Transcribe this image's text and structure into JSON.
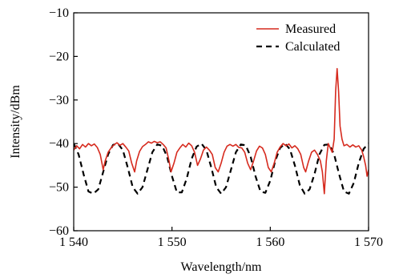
{
  "chart_data": {
    "type": "line",
    "xlabel": "Wavelength/nm",
    "ylabel": "Intensity/dBm",
    "xlim": [
      1540,
      1570
    ],
    "ylim": [
      -60,
      -10
    ],
    "x_ticks": [
      1540,
      1550,
      1560,
      1570
    ],
    "x_tick_labels": [
      "1 540",
      "1 550",
      "1 560",
      "1 570"
    ],
    "y_ticks": [
      -60,
      -50,
      -40,
      -30,
      -20,
      -10
    ],
    "y_tick_labels": [
      "−60",
      "−50",
      "−40",
      "−30",
      "−20",
      "−10"
    ],
    "grid": false,
    "legend_position": "top-right",
    "series": [
      {
        "name": "Measured",
        "color": "#d62a1e",
        "style": "solid",
        "points": [
          [
            1540.0,
            -41.5
          ],
          [
            1540.3,
            -40.5
          ],
          [
            1540.6,
            -41.2
          ],
          [
            1540.9,
            -40.2
          ],
          [
            1541.2,
            -40.8
          ],
          [
            1541.5,
            -40.0
          ],
          [
            1541.8,
            -40.5
          ],
          [
            1542.1,
            -40.1
          ],
          [
            1542.4,
            -40.9
          ],
          [
            1542.7,
            -42.5
          ],
          [
            1543.0,
            -46.0
          ],
          [
            1543.2,
            -44.0
          ],
          [
            1543.5,
            -42.0
          ],
          [
            1543.8,
            -41.0
          ],
          [
            1544.1,
            -40.3
          ],
          [
            1544.4,
            -39.8
          ],
          [
            1544.7,
            -40.4
          ],
          [
            1545.0,
            -40.0
          ],
          [
            1545.3,
            -40.8
          ],
          [
            1545.6,
            -41.7
          ],
          [
            1545.9,
            -44.5
          ],
          [
            1546.2,
            -46.5
          ],
          [
            1546.4,
            -44.0
          ],
          [
            1546.7,
            -41.8
          ],
          [
            1547.0,
            -40.7
          ],
          [
            1547.3,
            -40.2
          ],
          [
            1547.6,
            -39.6
          ],
          [
            1547.9,
            -39.9
          ],
          [
            1548.2,
            -39.5
          ],
          [
            1548.5,
            -39.8
          ],
          [
            1548.8,
            -39.6
          ],
          [
            1549.1,
            -40.2
          ],
          [
            1549.4,
            -41.0
          ],
          [
            1549.7,
            -44.0
          ],
          [
            1549.9,
            -46.5
          ],
          [
            1550.2,
            -44.5
          ],
          [
            1550.5,
            -42.0
          ],
          [
            1550.8,
            -41.0
          ],
          [
            1551.1,
            -40.2
          ],
          [
            1551.4,
            -40.8
          ],
          [
            1551.7,
            -39.9
          ],
          [
            1552.0,
            -40.5
          ],
          [
            1552.3,
            -42.0
          ],
          [
            1552.6,
            -45.0
          ],
          [
            1552.9,
            -43.5
          ],
          [
            1553.2,
            -41.5
          ],
          [
            1553.5,
            -40.8
          ],
          [
            1553.8,
            -41.5
          ],
          [
            1554.1,
            -42.5
          ],
          [
            1554.4,
            -45.5
          ],
          [
            1554.7,
            -46.5
          ],
          [
            1555.0,
            -44.5
          ],
          [
            1555.3,
            -42.0
          ],
          [
            1555.6,
            -40.6
          ],
          [
            1555.9,
            -40.2
          ],
          [
            1556.2,
            -40.6
          ],
          [
            1556.5,
            -40.2
          ],
          [
            1556.8,
            -40.9
          ],
          [
            1557.1,
            -41.0
          ],
          [
            1557.4,
            -42.0
          ],
          [
            1557.7,
            -44.5
          ],
          [
            1558.0,
            -46.0
          ],
          [
            1558.3,
            -44.0
          ],
          [
            1558.6,
            -41.7
          ],
          [
            1558.9,
            -40.6
          ],
          [
            1559.2,
            -41.0
          ],
          [
            1559.5,
            -42.5
          ],
          [
            1559.8,
            -45.5
          ],
          [
            1560.1,
            -46.5
          ],
          [
            1560.4,
            -44.5
          ],
          [
            1560.7,
            -42.0
          ],
          [
            1561.0,
            -40.8
          ],
          [
            1561.3,
            -40.0
          ],
          [
            1561.6,
            -40.5
          ],
          [
            1561.9,
            -40.1
          ],
          [
            1562.2,
            -41.0
          ],
          [
            1562.5,
            -40.5
          ],
          [
            1562.8,
            -41.2
          ],
          [
            1563.1,
            -42.5
          ],
          [
            1563.4,
            -45.5
          ],
          [
            1563.6,
            -46.5
          ],
          [
            1563.9,
            -44.0
          ],
          [
            1564.2,
            -42.0
          ],
          [
            1564.5,
            -41.5
          ],
          [
            1564.8,
            -42.5
          ],
          [
            1565.1,
            -44.0
          ],
          [
            1565.3,
            -46.5
          ],
          [
            1565.5,
            -51.5
          ],
          [
            1565.7,
            -44.0
          ],
          [
            1565.9,
            -40.0
          ],
          [
            1566.1,
            -41.0
          ],
          [
            1566.3,
            -42.0
          ],
          [
            1566.5,
            -39.0
          ],
          [
            1566.65,
            -28.0
          ],
          [
            1566.8,
            -22.8
          ],
          [
            1566.95,
            -28.0
          ],
          [
            1567.1,
            -36.0
          ],
          [
            1567.3,
            -39.0
          ],
          [
            1567.5,
            -40.5
          ],
          [
            1567.8,
            -40.2
          ],
          [
            1568.1,
            -40.8
          ],
          [
            1568.4,
            -40.3
          ],
          [
            1568.7,
            -40.8
          ],
          [
            1569.0,
            -40.5
          ],
          [
            1569.3,
            -41.5
          ],
          [
            1569.5,
            -43.0
          ],
          [
            1569.7,
            -45.0
          ],
          [
            1569.85,
            -47.5
          ],
          [
            1570.0,
            -46.0
          ]
        ]
      },
      {
        "name": "Calculated",
        "color": "#000000",
        "style": "dashed",
        "points": [
          [
            1540.0,
            -40.0
          ],
          [
            1540.5,
            -42.5
          ],
          [
            1541.0,
            -47.0
          ],
          [
            1541.5,
            -51.0
          ],
          [
            1542.0,
            -51.5
          ],
          [
            1542.5,
            -50.5
          ],
          [
            1543.0,
            -46.5
          ],
          [
            1543.5,
            -42.5
          ],
          [
            1544.0,
            -40.3
          ],
          [
            1544.5,
            -40.0
          ],
          [
            1545.0,
            -41.5
          ],
          [
            1545.5,
            -45.5
          ],
          [
            1546.0,
            -50.0
          ],
          [
            1546.5,
            -51.5
          ],
          [
            1547.0,
            -50.0
          ],
          [
            1547.5,
            -46.0
          ],
          [
            1548.0,
            -42.0
          ],
          [
            1548.5,
            -40.2
          ],
          [
            1549.0,
            -40.5
          ],
          [
            1549.5,
            -43.0
          ],
          [
            1550.0,
            -47.5
          ],
          [
            1550.5,
            -51.2
          ],
          [
            1551.0,
            -51.2
          ],
          [
            1551.5,
            -48.0
          ],
          [
            1552.0,
            -43.5
          ],
          [
            1552.5,
            -40.7
          ],
          [
            1553.0,
            -40.0
          ],
          [
            1553.5,
            -41.5
          ],
          [
            1554.0,
            -45.5
          ],
          [
            1554.5,
            -50.0
          ],
          [
            1555.0,
            -51.5
          ],
          [
            1555.5,
            -50.0
          ],
          [
            1556.0,
            -46.0
          ],
          [
            1556.5,
            -42.0
          ],
          [
            1557.0,
            -40.2
          ],
          [
            1557.5,
            -40.4
          ],
          [
            1558.0,
            -43.0
          ],
          [
            1558.5,
            -47.5
          ],
          [
            1559.0,
            -51.0
          ],
          [
            1559.5,
            -51.3
          ],
          [
            1560.0,
            -48.5
          ],
          [
            1560.5,
            -44.0
          ],
          [
            1561.0,
            -41.0
          ],
          [
            1561.5,
            -40.0
          ],
          [
            1562.0,
            -41.3
          ],
          [
            1562.5,
            -45.0
          ],
          [
            1563.0,
            -49.5
          ],
          [
            1563.5,
            -51.5
          ],
          [
            1564.0,
            -50.5
          ],
          [
            1564.5,
            -47.0
          ],
          [
            1565.0,
            -42.5
          ],
          [
            1565.5,
            -40.3
          ],
          [
            1566.0,
            -40.2
          ],
          [
            1566.5,
            -42.5
          ],
          [
            1567.0,
            -47.0
          ],
          [
            1567.5,
            -51.0
          ],
          [
            1568.0,
            -51.5
          ],
          [
            1568.5,
            -49.0
          ],
          [
            1569.0,
            -44.5
          ],
          [
            1569.5,
            -41.2
          ],
          [
            1570.0,
            -40.0
          ]
        ]
      }
    ]
  }
}
